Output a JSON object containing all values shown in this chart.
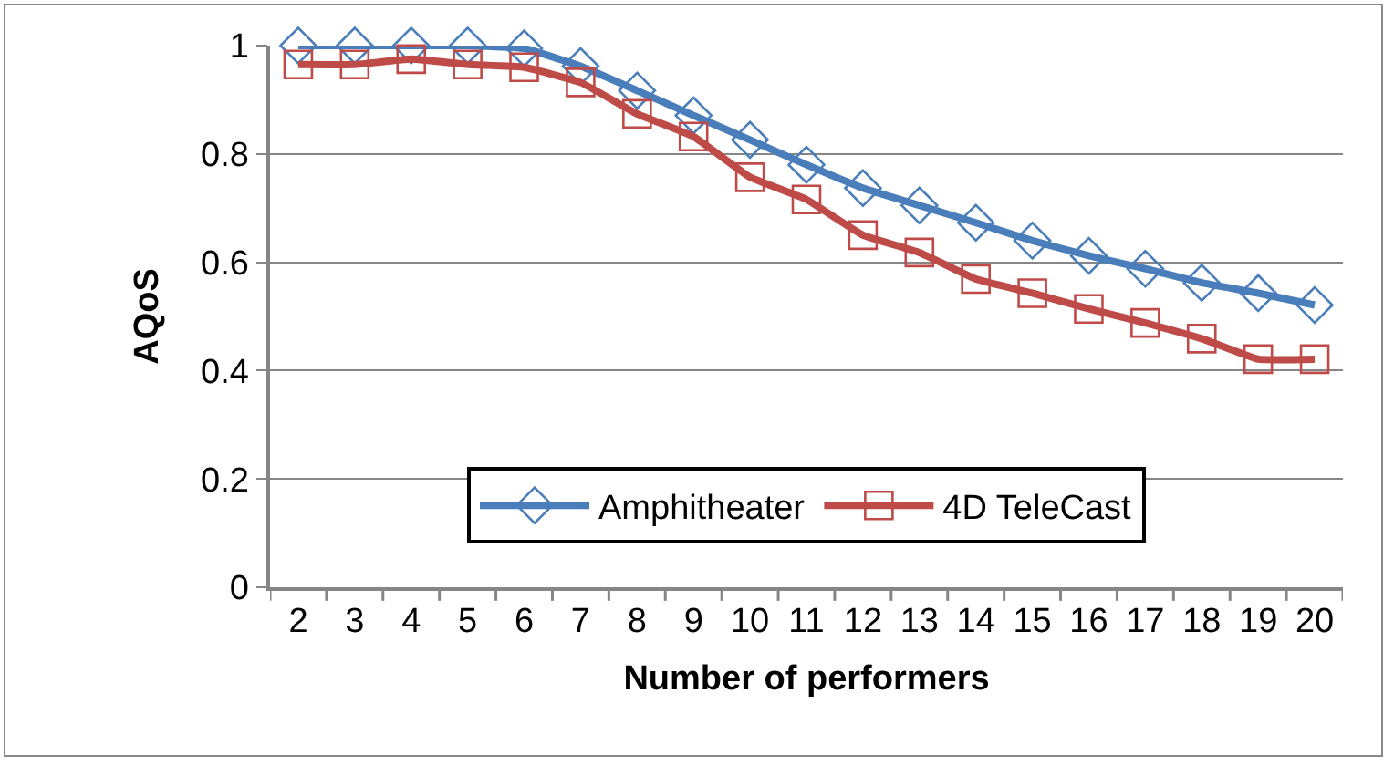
{
  "chart_data": {
    "type": "line",
    "xlabel": "Number of performers",
    "ylabel": "AQoS",
    "categories": [
      "2",
      "3",
      "4",
      "5",
      "6",
      "7",
      "8",
      "9",
      "10",
      "11",
      "12",
      "13",
      "14",
      "15",
      "16",
      "17",
      "18",
      "19",
      "20"
    ],
    "series": [
      {
        "name": "Amphitheater",
        "color": "#4a7ebb",
        "marker": "diamond",
        "values": [
          1,
          1,
          1,
          1,
          0.995,
          0.962,
          0.917,
          0.871,
          0.826,
          0.78,
          0.737,
          0.705,
          0.673,
          0.64,
          0.612,
          0.588,
          0.562,
          0.543,
          0.521
        ]
      },
      {
        "name": "4D TeleCast",
        "color": "#be4b48",
        "marker": "square",
        "values": [
          0.965,
          0.965,
          0.975,
          0.965,
          0.96,
          0.932,
          0.874,
          0.832,
          0.757,
          0.716,
          0.65,
          0.618,
          0.569,
          0.543,
          0.514,
          0.488,
          0.459,
          0.421,
          0.421
        ]
      }
    ],
    "ylim": [
      0,
      1
    ],
    "yticks": [
      0,
      0.2,
      0.4,
      0.6,
      0.8,
      1
    ],
    "grid": "y",
    "legend": "bottom",
    "line_style": "solid"
  }
}
